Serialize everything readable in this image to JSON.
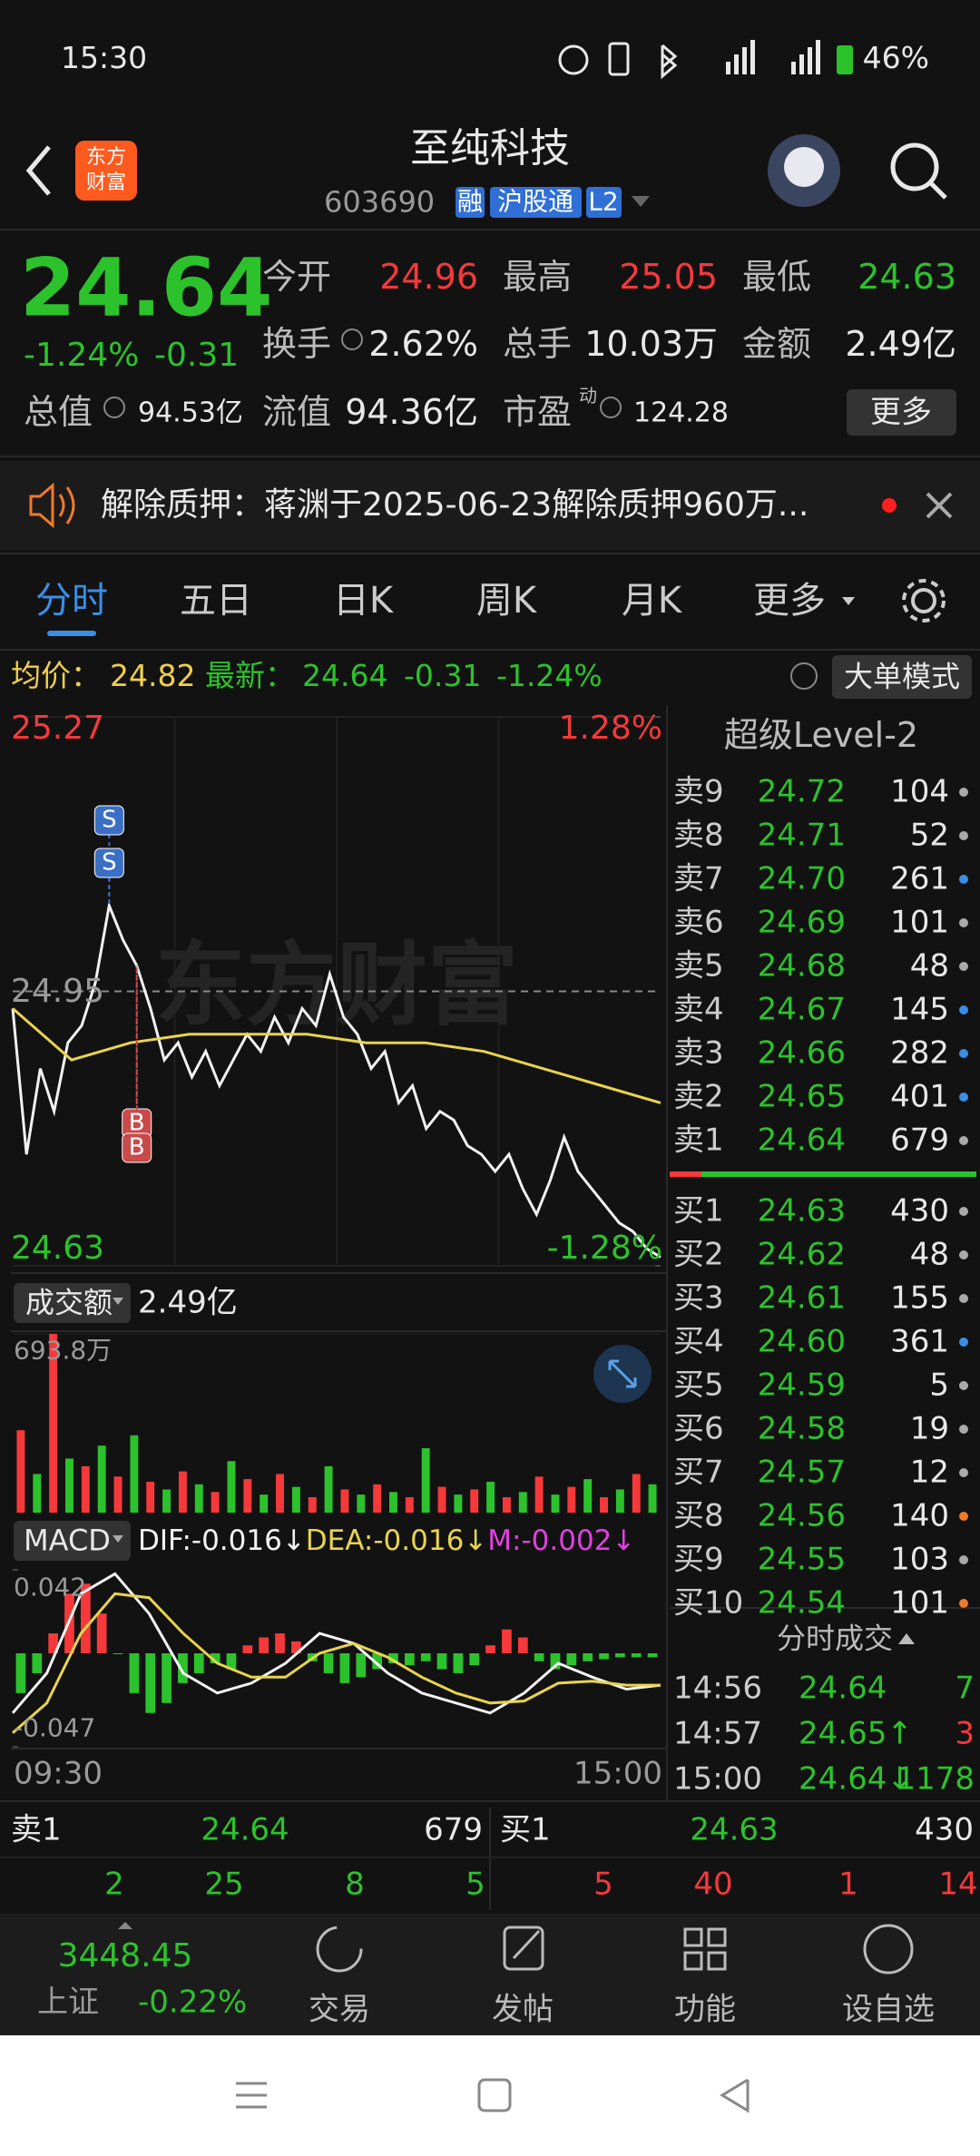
{
  "status_bar": {
    "time": "15:30",
    "battery": "46%"
  },
  "header": {
    "logo": [
      "东方",
      "财富"
    ],
    "title": "至纯科技",
    "code": "603690",
    "tags": [
      "融",
      "沪股通",
      "L2"
    ]
  },
  "quote": {
    "price": "24.64",
    "change_pct": "-1.24%",
    "change": "-0.31",
    "fields": [
      {
        "label": "今开",
        "value": "24.96",
        "color": "#f5393b"
      },
      {
        "label": "最高",
        "value": "25.05",
        "color": "#f5393b"
      },
      {
        "label": "最低",
        "value": "24.63",
        "color": "#2cc22c"
      },
      {
        "label": "换手",
        "value": "2.62%",
        "color": "#e8e8e8"
      },
      {
        "label": "总手",
        "value": "10.03万",
        "color": "#e8e8e8"
      },
      {
        "label": "金额",
        "value": "2.49亿",
        "color": "#e8e8e8"
      },
      {
        "label": "总值",
        "value": "94.53亿",
        "color": "#e8e8e8"
      },
      {
        "label": "流值",
        "value": "94.36亿",
        "color": "#e8e8e8"
      },
      {
        "label": "市盈",
        "superscript": "动",
        "value": "124.28",
        "color": "#e8e8e8"
      }
    ],
    "more": "更多"
  },
  "notice": {
    "text": "解除质押：蒋渊于2025-06-23解除质押960万..."
  },
  "tabs": {
    "items": [
      "分时",
      "五日",
      "日K",
      "周K",
      "月K",
      "更多"
    ],
    "active": 0
  },
  "info_line": {
    "avg_label": "均价：",
    "avg": "24.82",
    "last_label": "最新：",
    "last": "24.64",
    "change": "-0.31",
    "change_pct": "-1.24%",
    "button": "大单模式"
  },
  "chart_data": [
    {
      "type": "line",
      "watermark": "东方财富",
      "series": [
        {
          "color": "#f2f2f2",
          "values": [
            24.93,
            24.76,
            24.86,
            24.81,
            24.89,
            24.91,
            24.96,
            25.05,
            25.01,
            24.98,
            24.93,
            24.87,
            24.89,
            24.85,
            24.88,
            24.84,
            24.87,
            24.9,
            24.88,
            24.92,
            24.89,
            24.93,
            24.91,
            24.97,
            24.92,
            24.9,
            24.86,
            24.88,
            24.82,
            24.84,
            24.79,
            24.81,
            24.8,
            24.77,
            24.76,
            24.74,
            24.76,
            24.72,
            24.69,
            24.73,
            24.78,
            24.74,
            24.72,
            24.7,
            24.68,
            24.67,
            24.65,
            24.64
          ]
        },
        {
          "color": "#e8d44d",
          "values": [
            24.93,
            24.87,
            24.89,
            24.9,
            24.9,
            24.9,
            24.89,
            24.89,
            24.88,
            24.86,
            24.84,
            24.82
          ]
        }
      ],
      "ylim": [
        24.63,
        25.27
      ],
      "yticks": [
        24.63,
        24.95,
        25.27
      ],
      "y2lim": [
        -1.28,
        1.28
      ],
      "y2ticks": [
        {
          "value": -1.28,
          "label": "-1.28%"
        },
        {
          "value": 1.28,
          "label": "1.28%"
        }
      ],
      "markers": [
        {
          "label": "S",
          "at": 7
        },
        {
          "label": "S",
          "at": 7
        },
        {
          "label": "B",
          "at": 9
        },
        {
          "label": "B",
          "at": 9
        }
      ]
    },
    {
      "type": "bar",
      "title": "成交额",
      "total": "2.49亿",
      "values": [
        320,
        150,
        693.8,
        210,
        180,
        260,
        140,
        300,
        120,
        90,
        160,
        110,
        80,
        200,
        130,
        70,
        150,
        100,
        60,
        180,
        90,
        70,
        110,
        80,
        60,
        250,
        100,
        70,
        90,
        120,
        60,
        80,
        140,
        70,
        100,
        130,
        60,
        90,
        150,
        110
      ],
      "colors": [
        "#f5393b",
        "#2cc22c"
      ],
      "ylim": [
        0,
        693.8
      ],
      "yticks": [
        {
          "value": 693.8,
          "label": "693.8万"
        }
      ]
    },
    {
      "type": "macd",
      "title": "MACD",
      "legend": [
        {
          "text": "DIF:-0.016↓",
          "color": "#f2f2f2"
        },
        {
          "text": "DEA:-0.016↓",
          "color": "#e8d44d"
        },
        {
          "text": "M:-0.002↓",
          "color": "#e040e0"
        }
      ],
      "histogram": [
        -0.02,
        -0.01,
        0.01,
        0.03,
        0.035,
        0.02,
        0.0,
        -0.02,
        -0.03,
        -0.025,
        -0.015,
        -0.01,
        -0.005,
        -0.008,
        0.004,
        0.008,
        0.01,
        0.006,
        -0.004,
        -0.01,
        -0.015,
        -0.012,
        -0.008,
        -0.005,
        -0.006,
        -0.004,
        -0.008,
        -0.01,
        -0.006,
        0.004,
        0.012,
        0.008,
        -0.004,
        -0.008,
        -0.006,
        -0.004,
        -0.003,
        -0.002,
        -0.002,
        -0.002
      ],
      "series": [
        {
          "color": "#f2f2f2",
          "values": [
            -0.03,
            -0.01,
            0.03,
            0.04,
            0.02,
            -0.01,
            -0.02,
            -0.015,
            -0.005,
            0.01,
            0.005,
            -0.01,
            -0.02,
            -0.025,
            -0.03,
            -0.02,
            -0.005,
            -0.012,
            -0.018,
            -0.016
          ]
        },
        {
          "color": "#e8d44d",
          "values": [
            -0.04,
            -0.025,
            0.01,
            0.03,
            0.028,
            0.01,
            -0.005,
            -0.012,
            -0.012,
            0.0,
            0.005,
            -0.002,
            -0.012,
            -0.02,
            -0.025,
            -0.024,
            -0.015,
            -0.014,
            -0.016,
            -0.016
          ]
        }
      ],
      "colors": [
        "#f5393b",
        "#2cc22c"
      ],
      "ylim": [
        -0.047,
        0.042
      ],
      "yticks": [
        -0.047,
        0.042
      ],
      "time_labels": [
        "09:30",
        "15:00"
      ]
    }
  ],
  "order_book": {
    "title": "超级Level-2",
    "asks": [
      {
        "label": "卖9",
        "price": "24.72",
        "volume": "104",
        "dot": "#aaaaaa"
      },
      {
        "label": "卖8",
        "price": "24.71",
        "volume": "52",
        "dot": "#aaaaaa"
      },
      {
        "label": "卖7",
        "price": "24.70",
        "volume": "261",
        "dot": "#3a8ee6"
      },
      {
        "label": "卖6",
        "price": "24.69",
        "volume": "101",
        "dot": "#aaaaaa"
      },
      {
        "label": "卖5",
        "price": "24.68",
        "volume": "48",
        "dot": "#aaaaaa"
      },
      {
        "label": "卖4",
        "price": "24.67",
        "volume": "145",
        "dot": "#3a8ee6"
      },
      {
        "label": "卖3",
        "price": "24.66",
        "volume": "282",
        "dot": "#3a8ee6"
      },
      {
        "label": "卖2",
        "price": "24.65",
        "volume": "401",
        "dot": "#3a8ee6"
      },
      {
        "label": "卖1",
        "price": "24.64",
        "volume": "679",
        "dot": "#aaaaaa"
      }
    ],
    "bids": [
      {
        "label": "买1",
        "price": "24.63",
        "volume": "430",
        "dot": "#aaaaaa"
      },
      {
        "label": "买2",
        "price": "24.62",
        "volume": "48",
        "dot": "#aaaaaa"
      },
      {
        "label": "买3",
        "price": "24.61",
        "volume": "155",
        "dot": "#aaaaaa"
      },
      {
        "label": "买4",
        "price": "24.60",
        "volume": "361",
        "dot": "#3a8ee6"
      },
      {
        "label": "买5",
        "price": "24.59",
        "volume": "5",
        "dot": "#aaaaaa"
      },
      {
        "label": "买6",
        "price": "24.58",
        "volume": "19",
        "dot": "#aaaaaa"
      },
      {
        "label": "买7",
        "price": "24.57",
        "volume": "12",
        "dot": "#aaaaaa"
      },
      {
        "label": "买8",
        "price": "24.56",
        "volume": "140",
        "dot": "#f07a2a"
      },
      {
        "label": "买9",
        "price": "24.55",
        "volume": "103",
        "dot": "#aaaaaa"
      },
      {
        "label": "买10",
        "price": "24.54",
        "volume": "101",
        "dot": "#f07a2a"
      }
    ]
  },
  "trades": {
    "title": "分时成交",
    "rows": [
      {
        "time": "14:56",
        "price": "24.64",
        "volume": "7",
        "color": "#2cc22c"
      },
      {
        "time": "14:57",
        "price": "24.65↑",
        "volume": "3",
        "color": "#f5393b"
      },
      {
        "time": "15:00",
        "price": "24.64↓",
        "volume": "1178",
        "color": "#2cc22c"
      }
    ]
  },
  "bottom_bar": {
    "sell": {
      "label": "卖1",
      "price": "24.64",
      "volume": "679"
    },
    "buy": {
      "label": "买1",
      "price": "24.63",
      "volume": "430"
    },
    "sell_counts": [
      "2",
      "25",
      "8",
      "5"
    ],
    "buy_counts": [
      "5",
      "40",
      "1",
      "14"
    ]
  },
  "nav": {
    "index": {
      "value": "3448.45",
      "name": "上证",
      "change": "-0.22%"
    },
    "items": [
      "交易",
      "发帖",
      "功能",
      "设自选"
    ]
  }
}
